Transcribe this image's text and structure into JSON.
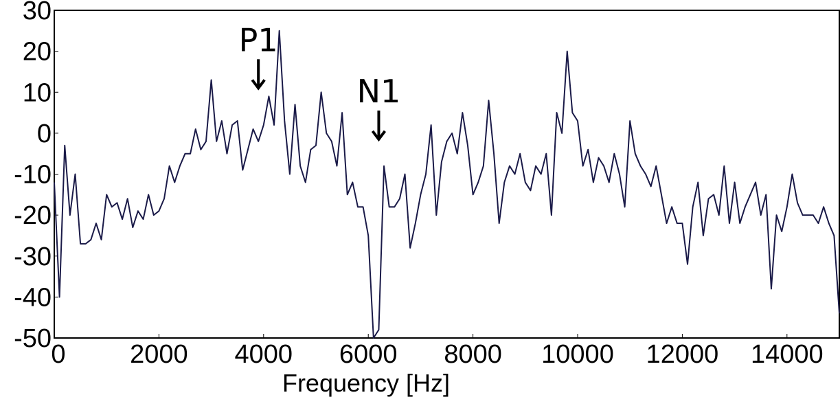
{
  "chart_data": {
    "type": "line",
    "xlabel": "Frequency [Hz]",
    "x": [
      0,
      100,
      200,
      300,
      400,
      500,
      600,
      700,
      800,
      900,
      1000,
      1100,
      1200,
      1300,
      1400,
      1500,
      1600,
      1700,
      1800,
      1900,
      2000,
      2100,
      2200,
      2300,
      2400,
      2500,
      2600,
      2700,
      2800,
      2900,
      3000,
      3100,
      3200,
      3300,
      3400,
      3500,
      3600,
      3700,
      3800,
      3900,
      4000,
      4100,
      4200,
      4300,
      4400,
      4500,
      4600,
      4700,
      4800,
      4900,
      5000,
      5100,
      5200,
      5300,
      5400,
      5500,
      5600,
      5700,
      5800,
      5900,
      6000,
      6100,
      6200,
      6300,
      6400,
      6500,
      6600,
      6700,
      6800,
      6900,
      7000,
      7100,
      7200,
      7300,
      7400,
      7500,
      7600,
      7700,
      7800,
      7900,
      8000,
      8100,
      8200,
      8300,
      8400,
      8500,
      8600,
      8700,
      8800,
      8900,
      9000,
      9100,
      9200,
      9300,
      9400,
      9500,
      9600,
      9700,
      9800,
      9900,
      10000,
      10100,
      10200,
      10300,
      10400,
      10500,
      10600,
      10700,
      10800,
      10900,
      11000,
      11100,
      11200,
      11300,
      11400,
      11500,
      11600,
      11700,
      11800,
      11900,
      12000,
      12100,
      12200,
      12300,
      12400,
      12500,
      12600,
      12700,
      12800,
      12900,
      13000,
      13100,
      13200,
      13300,
      13400,
      13500,
      13600,
      13700,
      13800,
      13900,
      14000,
      14100,
      14200,
      14300,
      14400,
      14500,
      14600,
      14700,
      14800,
      14900,
      15000
    ],
    "series": [
      {
        "color": "#1a1a48",
        "values": [
          -12,
          -40,
          -3,
          -20,
          -10,
          -27,
          -27,
          -26,
          -22,
          -26,
          -15,
          -18,
          -17,
          -21,
          -16,
          -23,
          -19,
          -21,
          -15,
          -20,
          -19,
          -16,
          -8,
          -12,
          -8,
          -5,
          -5,
          1,
          -4,
          -2,
          13,
          -2,
          3,
          -5,
          2,
          3,
          -9,
          -4,
          1,
          -2,
          2,
          9,
          2,
          25,
          3,
          -10,
          7,
          -8,
          -12,
          -4,
          -3,
          10,
          0,
          -2,
          -8,
          5,
          -15,
          -12,
          -18,
          -18,
          -25,
          -50,
          -48,
          -8,
          -18,
          -18,
          -16,
          -10,
          -28,
          -22,
          -15,
          -10,
          2,
          -20,
          -7,
          -2,
          0,
          -5,
          5,
          -3,
          -15,
          -12,
          -8,
          8,
          -5,
          -22,
          -12,
          -8,
          -10,
          -5,
          -12,
          -14,
          -8,
          -10,
          -5,
          -20,
          5,
          0,
          20,
          5,
          3,
          -8,
          -4,
          -12,
          -6,
          -8,
          -12,
          -5,
          -10,
          -18,
          3,
          -5,
          -8,
          -10,
          -13,
          -8,
          -15,
          -22,
          -18,
          -22,
          -22,
          -32,
          -18,
          -12,
          -25,
          -16,
          -15,
          -20,
          -8,
          -22,
          -12,
          -22,
          -18,
          -15,
          -12,
          -20,
          -15,
          -38,
          -20,
          -24,
          -18,
          -10,
          -17,
          -20,
          -20,
          -20,
          -22,
          -18,
          -22,
          -25,
          -44
        ]
      }
    ],
    "xlim": [
      0,
      15000
    ],
    "ylim": [
      -50,
      30
    ],
    "xticks": [
      0,
      2000,
      4000,
      6000,
      8000,
      10000,
      12000,
      14000
    ],
    "yticks": [
      -50,
      -40,
      -30,
      -20,
      -10,
      0,
      10,
      20,
      30
    ],
    "annotations": [
      {
        "text": "P1",
        "x": 3900,
        "y": 11
      },
      {
        "text": "N1",
        "x": 6200,
        "y": -1.5
      }
    ]
  }
}
